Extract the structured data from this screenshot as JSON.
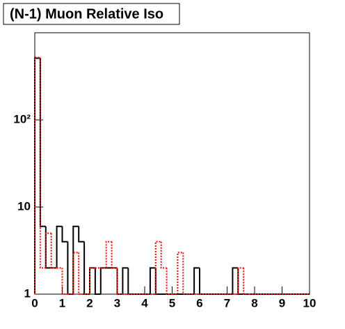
{
  "chart_data": {
    "type": "histogram",
    "title": "(N-1) Muon Relative Iso",
    "bins": [
      0,
      0.2,
      0.4,
      0.6,
      0.8,
      1,
      1.2,
      1.4,
      1.6,
      1.8,
      2,
      2.2,
      2.4,
      2.6,
      2.8,
      3,
      3.2,
      3.4,
      3.6,
      3.8,
      4,
      4.2,
      4.4,
      4.6,
      4.8,
      5,
      5.2,
      5.4,
      5.6,
      5.8,
      6,
      6.2,
      6.4,
      6.6,
      6.8,
      7,
      7.2,
      7.4,
      7.6,
      7.8,
      8,
      8.2,
      8.4,
      8.6,
      8.8,
      9,
      9.2,
      9.4,
      9.6,
      9.8,
      10
    ],
    "series": [
      {
        "color": "#000000",
        "style": "solid",
        "values": [
          510,
          6,
          2,
          2,
          6,
          4,
          0,
          6,
          4,
          0,
          2,
          0,
          2,
          2,
          2,
          0,
          2,
          0,
          0,
          0,
          0,
          2,
          0,
          0,
          0,
          0,
          0,
          0,
          0,
          2,
          0,
          0,
          0,
          0,
          0,
          0,
          2,
          0,
          0,
          0,
          0,
          0,
          0,
          0,
          0,
          0,
          0,
          0,
          0,
          0
        ]
      },
      {
        "color": "#ff0000",
        "style": "dotted",
        "values": [
          520,
          2,
          5,
          2,
          2,
          0,
          0,
          3,
          0,
          0,
          2,
          2,
          2,
          4,
          2,
          0,
          0,
          0,
          0,
          0,
          0,
          0,
          4,
          2,
          0,
          0,
          3,
          0,
          0,
          0,
          0,
          0,
          0,
          0,
          0,
          0,
          0,
          2,
          0,
          0,
          0,
          0,
          0,
          0,
          0,
          0,
          0,
          0,
          0,
          0
        ]
      }
    ],
    "xlim": [
      0,
      10
    ],
    "xticks": [
      0,
      1,
      2,
      3,
      4,
      5,
      6,
      7,
      8,
      9,
      10
    ],
    "ylim": [
      1,
      1000
    ],
    "ylog": true,
    "yticks": [
      1,
      10,
      {
        "value": 100,
        "label": "10²"
      }
    ]
  }
}
